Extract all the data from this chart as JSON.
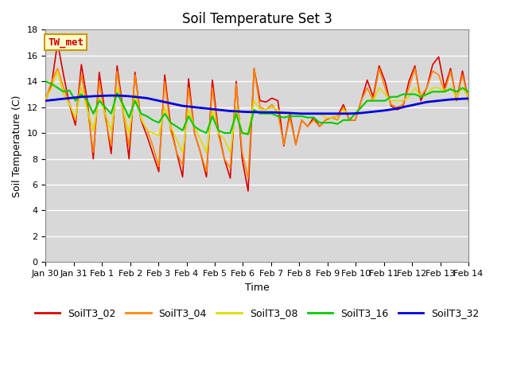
{
  "title": "Soil Temperature Set 3",
  "xlabel": "Time",
  "ylabel": "Soil Temperature (C)",
  "annotation": "TW_met",
  "ylim": [
    0,
    18
  ],
  "yticks": [
    0,
    2,
    4,
    6,
    8,
    10,
    12,
    14,
    16,
    18
  ],
  "xtick_labels": [
    "Jan 30",
    "Jan 31",
    "Feb 1",
    "Feb 2",
    "Feb 3",
    "Feb 4",
    "Feb 5",
    "Feb 6",
    "Feb 7",
    "Feb 8",
    "Feb 9",
    "Feb 10",
    "Feb 11",
    "Feb 12",
    "Feb 13",
    "Feb 14"
  ],
  "series_colors": {
    "SoilT3_02": "#dd0000",
    "SoilT3_04": "#ff8800",
    "SoilT3_08": "#dddd00",
    "SoilT3_16": "#00cc00",
    "SoilT3_32": "#0000dd"
  },
  "SoilT3_02": [
    12.5,
    13.8,
    17.0,
    14.5,
    12.2,
    10.6,
    15.3,
    12.5,
    8.0,
    14.7,
    11.5,
    8.4,
    15.2,
    11.8,
    8.0,
    14.7,
    11.0,
    9.8,
    8.4,
    7.0,
    14.5,
    10.5,
    8.5,
    6.6,
    14.2,
    10.0,
    8.5,
    6.6,
    14.1,
    10.2,
    8.0,
    6.5,
    14.0,
    8.0,
    5.5,
    15.0,
    12.5,
    12.4,
    12.7,
    12.5,
    9.0,
    11.5,
    9.1,
    11.0,
    10.5,
    11.2,
    10.5,
    11.0,
    11.2,
    11.3,
    12.2,
    11.0,
    11.0,
    12.5,
    14.1,
    12.8,
    15.2,
    14.0,
    12.1,
    11.8,
    12.0,
    14.0,
    15.2,
    12.5,
    13.5,
    15.3,
    15.9,
    13.5,
    15.0,
    12.5,
    14.8,
    12.5
  ],
  "SoilT3_04": [
    12.6,
    14.0,
    15.0,
    13.5,
    12.3,
    11.0,
    14.5,
    12.0,
    8.5,
    14.0,
    11.2,
    9.0,
    14.8,
    11.5,
    9.0,
    14.5,
    11.0,
    10.3,
    9.0,
    7.4,
    14.0,
    10.2,
    8.5,
    7.5,
    13.5,
    10.0,
    8.5,
    7.0,
    13.5,
    9.9,
    8.0,
    7.3,
    13.8,
    8.5,
    6.5,
    15.0,
    12.0,
    11.8,
    12.2,
    11.5,
    9.1,
    11.2,
    9.1,
    11.0,
    10.5,
    11.0,
    10.5,
    11.0,
    11.2,
    11.0,
    12.0,
    11.0,
    11.0,
    12.5,
    13.5,
    12.5,
    15.0,
    13.5,
    12.2,
    12.0,
    12.2,
    13.5,
    15.0,
    12.8,
    13.5,
    14.8,
    14.5,
    13.2,
    14.8,
    12.5,
    14.5,
    12.5
  ],
  "SoilT3_08": [
    12.6,
    13.5,
    14.8,
    13.0,
    12.2,
    11.2,
    13.5,
    11.8,
    10.2,
    12.8,
    11.5,
    10.2,
    13.5,
    11.8,
    10.0,
    13.0,
    11.2,
    10.2,
    10.0,
    9.8,
    12.0,
    10.5,
    9.5,
    8.5,
    11.8,
    10.5,
    9.5,
    8.5,
    11.8,
    10.0,
    9.5,
    8.5,
    12.0,
    10.0,
    10.0,
    12.5,
    11.8,
    11.8,
    12.0,
    11.8,
    11.5,
    11.5,
    11.5,
    11.5,
    11.5,
    11.5,
    11.5,
    11.2,
    11.2,
    11.3,
    11.8,
    11.5,
    11.5,
    12.0,
    12.5,
    12.5,
    13.5,
    13.0,
    12.5,
    12.5,
    12.5,
    12.8,
    13.5,
    12.8,
    13.0,
    13.5,
    13.5,
    13.2,
    13.5,
    12.8,
    13.5,
    12.8
  ],
  "SoilT3_16": [
    14.0,
    13.8,
    13.5,
    13.2,
    13.3,
    12.5,
    13.0,
    12.5,
    11.5,
    12.5,
    12.0,
    11.5,
    13.1,
    12.2,
    11.2,
    12.5,
    11.5,
    11.3,
    11.0,
    10.8,
    11.5,
    10.8,
    10.5,
    10.2,
    11.3,
    10.5,
    10.2,
    10.0,
    11.3,
    10.2,
    10.0,
    10.0,
    11.5,
    10.0,
    9.9,
    11.8,
    11.5,
    11.5,
    11.5,
    11.3,
    11.2,
    11.3,
    11.3,
    11.3,
    11.2,
    11.2,
    10.8,
    10.8,
    10.8,
    10.7,
    11.0,
    11.0,
    11.5,
    12.0,
    12.5,
    12.5,
    12.5,
    12.5,
    12.8,
    12.8,
    13.0,
    13.0,
    13.0,
    12.8,
    13.0,
    13.2,
    13.2,
    13.2,
    13.4,
    13.2,
    13.5,
    13.2
  ],
  "SoilT3_32": [
    12.5,
    12.55,
    12.6,
    12.65,
    12.7,
    12.75,
    12.8,
    12.82,
    12.85,
    12.87,
    12.89,
    12.9,
    12.9,
    12.88,
    12.85,
    12.8,
    12.75,
    12.7,
    12.6,
    12.5,
    12.4,
    12.3,
    12.2,
    12.1,
    12.05,
    12.0,
    11.95,
    11.9,
    11.85,
    11.8,
    11.75,
    11.7,
    11.68,
    11.65,
    11.63,
    11.62,
    11.61,
    11.6,
    11.6,
    11.58,
    11.57,
    11.55,
    11.52,
    11.5,
    11.5,
    11.5,
    11.5,
    11.5,
    11.5,
    11.5,
    11.5,
    11.5,
    11.52,
    11.55,
    11.6,
    11.65,
    11.7,
    11.75,
    11.82,
    11.9,
    12.0,
    12.1,
    12.2,
    12.3,
    12.4,
    12.45,
    12.5,
    12.55,
    12.6,
    12.62,
    12.65,
    12.67
  ],
  "background_color": "#ffffff",
  "plot_bg_top_color": "#d8d8d8",
  "plot_bg_bottom_color": "#e8e8e8",
  "grid_color": "#ffffff",
  "title_fontsize": 12,
  "axis_label_fontsize": 9,
  "tick_fontsize": 8,
  "legend_fontsize": 9
}
